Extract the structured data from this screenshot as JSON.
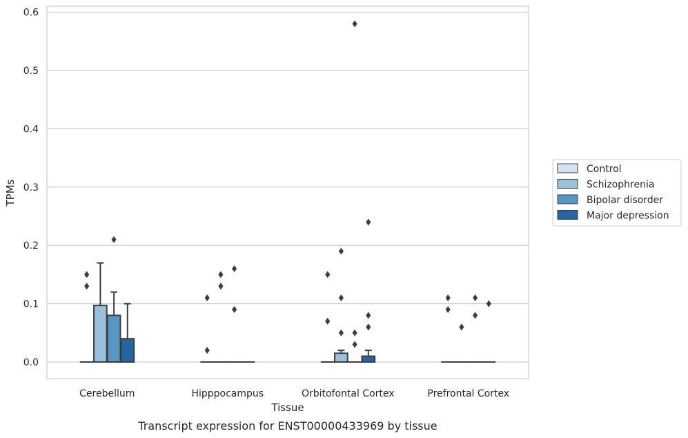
{
  "chart_data": {
    "type": "box",
    "ylabel": "TPMs",
    "xlabel": "Tissue",
    "caption": "Transcript expression for ENST00000433969 by tissue",
    "ylim": [
      -0.03,
      0.61
    ],
    "yticks": [
      0.0,
      0.1,
      0.2,
      0.3,
      0.4,
      0.5,
      0.6
    ],
    "ytick_labels": [
      "0.0",
      "0.1",
      "0.2",
      "0.3",
      "0.4",
      "0.5",
      "0.6"
    ],
    "grid": "horizontal",
    "legend_position": "right",
    "categories": [
      "Cerebellum",
      "Hipppocampus",
      "Orbitofontal Cortex",
      "Prefrontal Cortex"
    ],
    "series": [
      {
        "name": "Control",
        "color": "#d4e4f2",
        "boxes": [
          {
            "q1": 0,
            "median": 0,
            "q3": 0,
            "whisker_low": 0,
            "whisker_high": 0,
            "outliers": [
              0.15,
              0.13
            ]
          },
          {
            "q1": 0,
            "median": 0,
            "q3": 0,
            "whisker_low": 0,
            "whisker_high": 0,
            "outliers": [
              0.11,
              0.02
            ]
          },
          {
            "q1": 0,
            "median": 0,
            "q3": 0,
            "whisker_low": 0,
            "whisker_high": 0,
            "outliers": [
              0.15,
              0.07
            ]
          },
          {
            "q1": 0,
            "median": 0,
            "q3": 0,
            "whisker_low": 0,
            "whisker_high": 0,
            "outliers": [
              0.11,
              0.09
            ]
          }
        ]
      },
      {
        "name": "Schizophrenia",
        "color": "#9ac0da",
        "boxes": [
          {
            "q1": 0,
            "median": 0,
            "q3": 0.097,
            "whisker_low": 0,
            "whisker_high": 0.17,
            "outliers": []
          },
          {
            "q1": 0,
            "median": 0,
            "q3": 0,
            "whisker_low": 0,
            "whisker_high": 0,
            "outliers": [
              0.15,
              0.13
            ]
          },
          {
            "q1": 0,
            "median": 0,
            "q3": 0.015,
            "whisker_low": 0,
            "whisker_high": 0.02,
            "outliers": [
              0.19,
              0.11,
              0.05
            ]
          },
          {
            "q1": 0,
            "median": 0,
            "q3": 0,
            "whisker_low": 0,
            "whisker_high": 0,
            "outliers": [
              0.06
            ]
          }
        ]
      },
      {
        "name": "Bipolar disorder",
        "color": "#5896c4",
        "boxes": [
          {
            "q1": 0,
            "median": 0,
            "q3": 0.08,
            "whisker_low": 0,
            "whisker_high": 0.12,
            "outliers": [
              0.21
            ]
          },
          {
            "q1": 0,
            "median": 0,
            "q3": 0,
            "whisker_low": 0,
            "whisker_high": 0,
            "outliers": [
              0.16,
              0.09
            ]
          },
          {
            "q1": 0,
            "median": 0,
            "q3": 0,
            "whisker_low": 0,
            "whisker_high": 0,
            "outliers": [
              0.58,
              0.05,
              0.03
            ]
          },
          {
            "q1": 0,
            "median": 0,
            "q3": 0,
            "whisker_low": 0,
            "whisker_high": 0,
            "outliers": [
              0.11,
              0.08
            ]
          }
        ]
      },
      {
        "name": "Major depression",
        "color": "#2764a2",
        "boxes": [
          {
            "q1": 0,
            "median": 0,
            "q3": 0.04,
            "whisker_low": 0,
            "whisker_high": 0.1,
            "outliers": []
          },
          {
            "q1": 0,
            "median": 0,
            "q3": 0,
            "whisker_low": 0,
            "whisker_high": 0,
            "outliers": []
          },
          {
            "q1": 0,
            "median": 0,
            "q3": 0.01,
            "whisker_low": 0,
            "whisker_high": 0.02,
            "outliers": [
              0.24,
              0.08,
              0.06
            ]
          },
          {
            "q1": 0,
            "median": 0,
            "q3": 0,
            "whisker_low": 0,
            "whisker_high": 0,
            "outliers": [
              0.1
            ]
          }
        ]
      }
    ]
  }
}
